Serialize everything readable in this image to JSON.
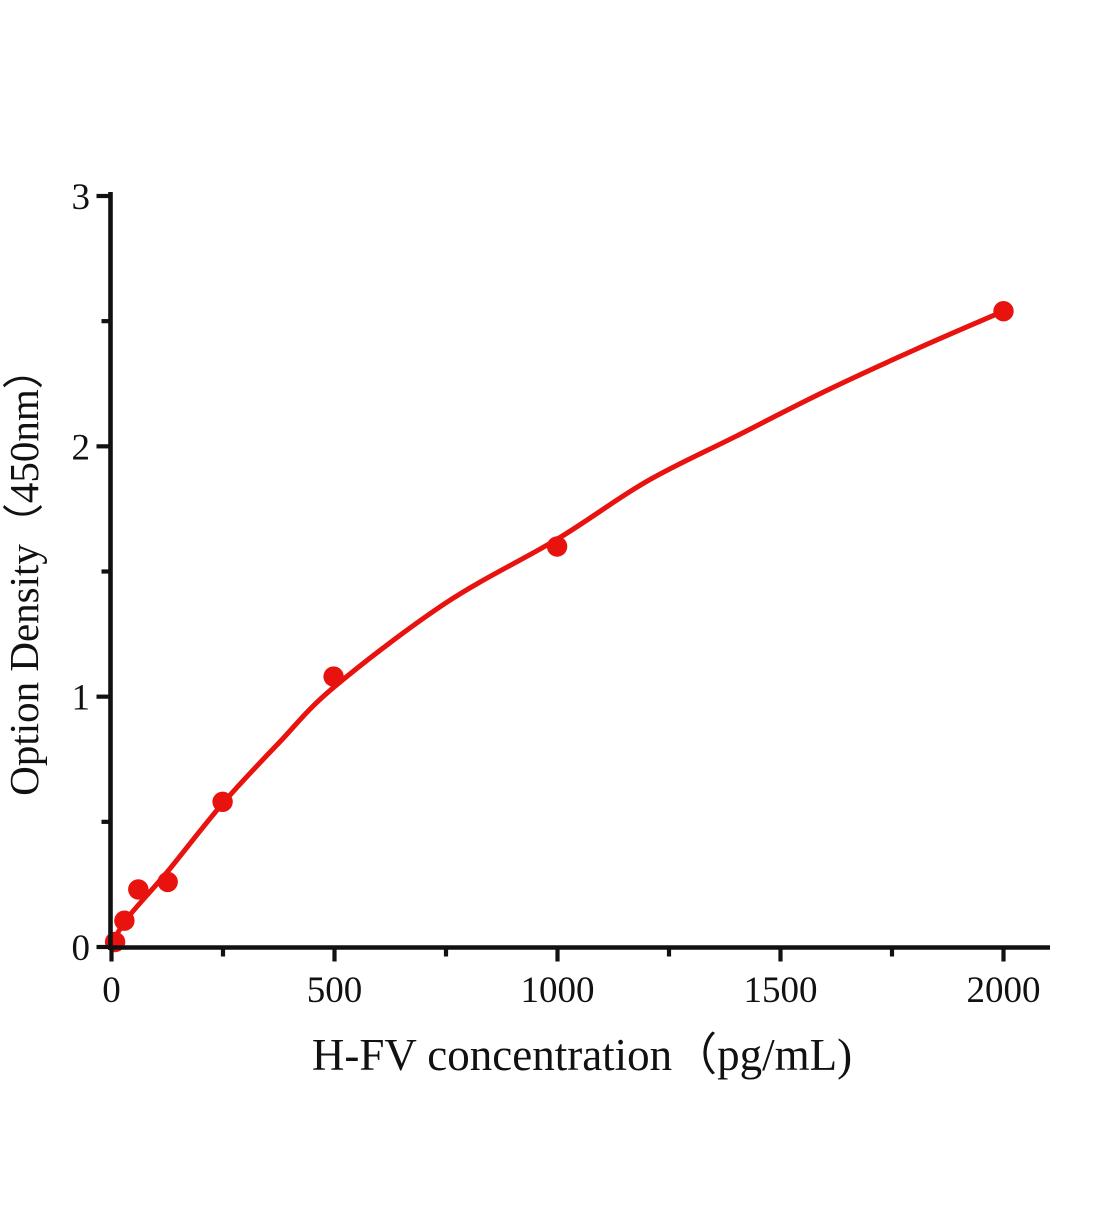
{
  "figure": {
    "background": "#ffffff",
    "accent_red": "#e8120e",
    "axis_color": "#111111"
  },
  "chart_data": {
    "type": "scatter",
    "title": "",
    "xlabel": "H-FV concentration（pg/mL)",
    "ylabel": "Option Density（450nm）",
    "xlim": [
      0,
      2000
    ],
    "ylim": [
      0,
      3
    ],
    "x_major_ticks": [
      0,
      500,
      1000,
      1500,
      2000
    ],
    "x_minor_ticks": [
      250,
      750,
      1250,
      1750
    ],
    "y_major_ticks": [
      0,
      1,
      2,
      3
    ],
    "y_minor_ticks": [
      0.5,
      1.5,
      2.5
    ],
    "grid": false,
    "legend": null,
    "series": [
      {
        "name": "standard-points",
        "kind": "scatter",
        "color": "#e8120e",
        "marker": "circle",
        "points": [
          [
            8,
            0.02
          ],
          [
            29,
            0.105
          ],
          [
            60,
            0.23
          ],
          [
            126,
            0.26
          ],
          [
            249,
            0.58
          ],
          [
            498,
            1.08
          ],
          [
            999,
            1.6
          ],
          [
            2000,
            2.54
          ]
        ]
      },
      {
        "name": "fit-curve",
        "kind": "line",
        "color": "#e8120e",
        "points": [
          [
            0,
            0
          ],
          [
            31,
            0.105
          ],
          [
            125,
            0.3
          ],
          [
            250,
            0.575
          ],
          [
            375,
            0.815
          ],
          [
            500,
            1.04
          ],
          [
            750,
            1.375
          ],
          [
            1000,
            1.63
          ],
          [
            1200,
            1.86
          ],
          [
            1400,
            2.04
          ],
          [
            1600,
            2.22
          ],
          [
            1800,
            2.385
          ],
          [
            2000,
            2.54
          ]
        ]
      }
    ]
  }
}
